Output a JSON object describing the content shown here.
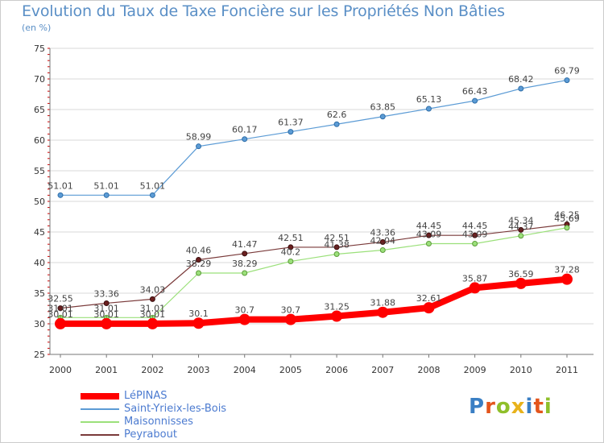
{
  "header": {
    "title": "Evolution du Taux de Taxe Foncière sur les Propriétés Non Bâties",
    "unit": "(en %)"
  },
  "logo": {
    "text": "Proxiti",
    "letter_colors": [
      "#3a7fc4",
      "#e3551c",
      "#8fbf2a",
      "#e8b21b",
      "#3a7fc4",
      "#e3551c",
      "#8fbf2a"
    ]
  },
  "colors": {
    "axis": "#777777",
    "grid": "#d9d9d9",
    "tick_label": "#333333",
    "data_label": "#444444",
    "axis_tick_mark": "#cc0000"
  },
  "chart_data": {
    "type": "line",
    "x": [
      "2000",
      "2001",
      "2002",
      "2003",
      "2004",
      "2005",
      "2006",
      "2007",
      "2008",
      "2009",
      "2010",
      "2011"
    ],
    "ylim": [
      25,
      75
    ],
    "yticks": [
      "25",
      "30",
      "35",
      "40",
      "45",
      "50",
      "55",
      "60",
      "65",
      "70",
      "75"
    ],
    "grid": "horizontal",
    "legend_position": "bottom-left",
    "series": [
      {
        "name": "LéPINAS",
        "color": "#ff0000",
        "values": [
          30.01,
          30.01,
          30.01,
          30.1,
          30.7,
          30.7,
          31.25,
          31.88,
          32.61,
          35.87,
          36.59,
          37.28
        ],
        "labels": [
          "30.01",
          "30.01",
          "30.01",
          "30.1",
          "30.7",
          "30.7",
          "31.25",
          "31.88",
          "32.61",
          "35.87",
          "36.59",
          "37.28"
        ]
      },
      {
        "name": "Saint-Yrieix-les-Bois",
        "color": "#5b9bd5",
        "values": [
          51.01,
          51.01,
          51.01,
          58.99,
          60.17,
          61.37,
          62.6,
          63.85,
          65.13,
          66.43,
          68.42,
          69.79
        ],
        "labels": [
          "51.01",
          "51.01",
          "51.01",
          "58.99",
          "60.17",
          "61.37",
          "62.6",
          "63.85",
          "65.13",
          "66.43",
          "68.42",
          "69.79"
        ]
      },
      {
        "name": "Maisonnisses",
        "color": "#9be07a",
        "values": [
          31.01,
          31.01,
          31.01,
          38.29,
          38.29,
          40.2,
          41.38,
          42.04,
          43.09,
          43.09,
          44.37,
          45.69
        ],
        "labels": [
          "31.01",
          "31.01",
          "31.01",
          "38.29",
          "38.29",
          "40.2",
          "41.38",
          "42.04",
          "43.09",
          "43.09",
          "44.37",
          "45.69"
        ]
      },
      {
        "name": "Peyrabout",
        "color": "#7a3a3a",
        "values": [
          32.55,
          33.36,
          34.03,
          40.46,
          41.47,
          42.51,
          42.51,
          43.36,
          44.45,
          44.45,
          45.34,
          46.25
        ],
        "labels": [
          "32.55",
          "33.36",
          "34.03",
          "40.46",
          "41.47",
          "42.51",
          "42.51",
          "43.36",
          "44.45",
          "44.45",
          "45.34",
          "46.25"
        ]
      }
    ]
  }
}
